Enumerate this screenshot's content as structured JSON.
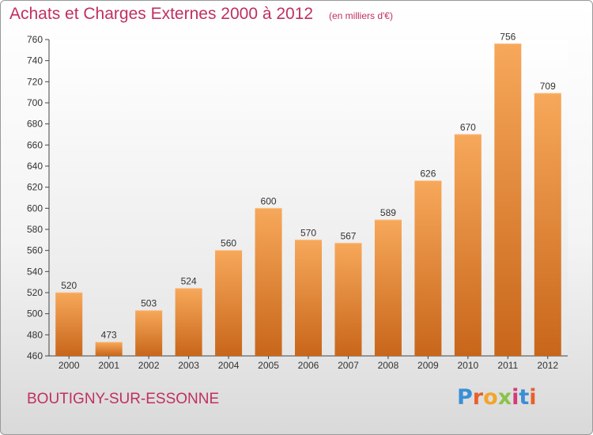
{
  "header": {
    "title": "Achats et Charges Externes 2000 à 2012",
    "subtitle": "(en milliers d'€)"
  },
  "footer": {
    "commune": "BOUTIGNY-SUR-ESSONNE",
    "logo": [
      "P",
      "r",
      "o",
      "x",
      "i",
      "t",
      "i"
    ],
    "logo_colors": [
      "#3a8fd6",
      "#e8602c",
      "#f2a52c",
      "#8bc34a",
      "#d33b78",
      "#3a8fd6",
      "#e8602c"
    ]
  },
  "chart_data": {
    "type": "bar",
    "title": "Achats et Charges Externes 2000 à 2012",
    "categories": [
      "2000",
      "2001",
      "2002",
      "2003",
      "2004",
      "2005",
      "2006",
      "2007",
      "2008",
      "2009",
      "2010",
      "2011",
      "2012"
    ],
    "values": [
      520,
      473,
      503,
      524,
      560,
      600,
      570,
      567,
      589,
      626,
      670,
      756,
      709
    ],
    "ylim": [
      460,
      760
    ],
    "yticks": [
      460,
      480,
      500,
      520,
      540,
      560,
      580,
      600,
      620,
      640,
      660,
      680,
      700,
      720,
      740,
      760
    ],
    "grid": false,
    "bar_color": "#f0903a"
  }
}
